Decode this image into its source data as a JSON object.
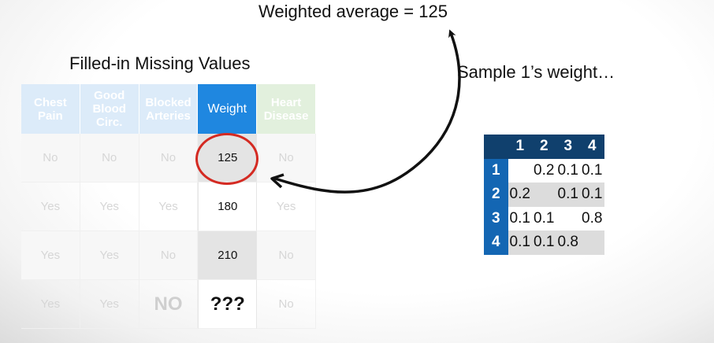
{
  "weighted_average": {
    "label": "Weighted average = ",
    "value": "125"
  },
  "table_title": "Filled-in Missing Values",
  "sample_weight_caption": "Sample 1’s weight…",
  "table": {
    "headers": [
      "Chest Pain",
      "Good Blood Circ.",
      "Blocked Arteries",
      "Weight",
      "Heart Disease"
    ],
    "rows": [
      [
        "No",
        "No",
        "No",
        "125",
        "No"
      ],
      [
        "Yes",
        "Yes",
        "Yes",
        "180",
        "Yes"
      ],
      [
        "Yes",
        "Yes",
        "No",
        "210",
        "No"
      ],
      [
        "Yes",
        "Yes",
        "NO",
        "???",
        "No"
      ]
    ]
  },
  "matrix": {
    "col_headers": [
      "1",
      "2",
      "3",
      "4"
    ],
    "row_headers": [
      "1",
      "2",
      "3",
      "4"
    ],
    "cells": [
      [
        "",
        "0.2",
        "0.1",
        "0.1"
      ],
      [
        "0.2",
        "",
        "0.1",
        "0.1"
      ],
      [
        "0.1",
        "0.1",
        "",
        "0.8"
      ],
      [
        "0.1",
        "0.1",
        "0.8",
        ""
      ]
    ]
  },
  "colors": {
    "weight_header": "#1f87e0",
    "matrix_header": "#10406d",
    "matrix_row_header": "#1366b3",
    "circle": "#d42a22"
  }
}
